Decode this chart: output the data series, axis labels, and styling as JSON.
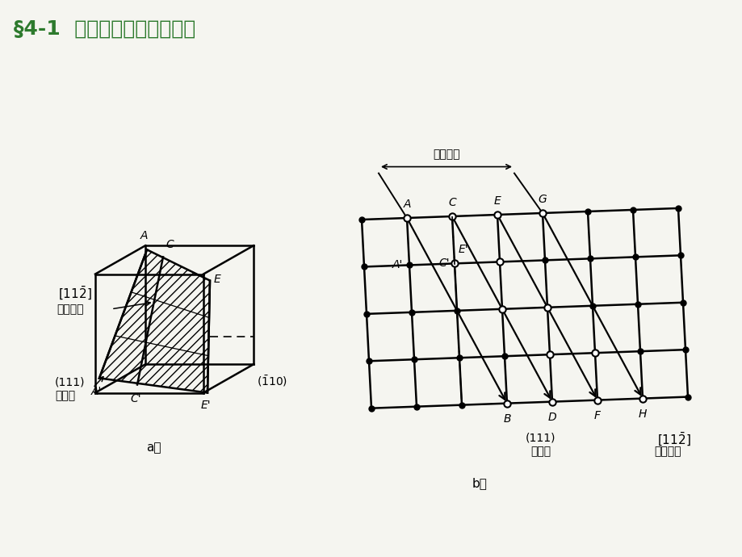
{
  "title": "§4-1  金属冷态下的塑性变形",
  "title_color": "#2d7a2d",
  "title_bg": "#b8d878",
  "bg_color": "#f5f5f0",
  "fig_label_a": "a）",
  "fig_label_b": "b）"
}
